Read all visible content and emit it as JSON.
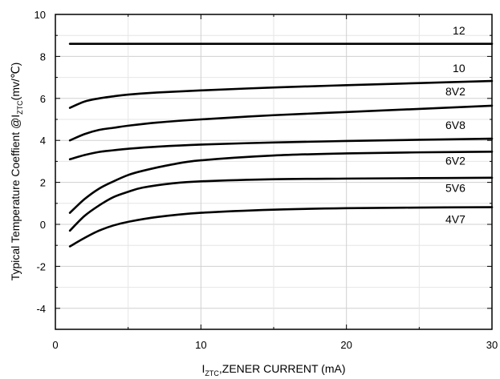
{
  "chart_data": {
    "type": "line",
    "title": "",
    "xlabel": "I₂ₜₑ, ZENER CURRENT (mA)",
    "xlabel_parts": {
      "main": "I",
      "sub": "ZTC",
      "rest": ",ZENER CURRENT (mA)"
    },
    "ylabel_parts": {
      "main": "Typical Temperature Coeffient @I",
      "sub": "ZTC",
      "rest": "(mv/℃)"
    },
    "xlim": [
      0,
      30
    ],
    "ylim": [
      -5,
      10
    ],
    "x_ticks": [
      0,
      10,
      20,
      30
    ],
    "y_ticks": [
      -4,
      -2,
      0,
      2,
      4,
      6,
      8,
      10
    ],
    "grid": true,
    "series": [
      {
        "name": "12",
        "x": [
          1,
          30
        ],
        "y": [
          8.6,
          8.6
        ]
      },
      {
        "name": "10",
        "x": [
          1,
          2,
          3,
          4,
          5,
          7,
          10,
          15,
          20,
          25,
          30
        ],
        "y": [
          5.55,
          5.85,
          6.0,
          6.1,
          6.18,
          6.28,
          6.38,
          6.52,
          6.63,
          6.73,
          6.83
        ]
      },
      {
        "name": "8V2",
        "x": [
          1,
          2,
          3,
          4,
          5,
          7,
          10,
          15,
          20,
          25,
          30
        ],
        "y": [
          4.0,
          4.3,
          4.5,
          4.6,
          4.7,
          4.85,
          5.0,
          5.2,
          5.35,
          5.5,
          5.65
        ]
      },
      {
        "name": "6V8",
        "x": [
          1,
          2,
          3,
          4,
          5,
          7,
          10,
          15,
          20,
          25,
          30
        ],
        "y": [
          3.1,
          3.3,
          3.45,
          3.53,
          3.6,
          3.7,
          3.8,
          3.9,
          3.97,
          4.03,
          4.08
        ]
      },
      {
        "name": "6V2",
        "x": [
          1,
          2,
          3,
          4,
          5,
          6,
          8,
          10,
          15,
          20,
          25,
          30
        ],
        "y": [
          0.55,
          1.2,
          1.7,
          2.05,
          2.35,
          2.55,
          2.85,
          3.05,
          3.28,
          3.38,
          3.43,
          3.46
        ]
      },
      {
        "name": "5V6",
        "x": [
          1,
          2,
          3,
          4,
          5,
          6,
          8,
          10,
          15,
          20,
          25,
          30
        ],
        "y": [
          -0.3,
          0.4,
          0.9,
          1.3,
          1.55,
          1.75,
          1.95,
          2.05,
          2.15,
          2.18,
          2.2,
          2.22
        ]
      },
      {
        "name": "4V7",
        "x": [
          1,
          2,
          3,
          4,
          5,
          7,
          10,
          15,
          20,
          25,
          30
        ],
        "y": [
          -1.05,
          -0.65,
          -0.3,
          -0.05,
          0.12,
          0.35,
          0.55,
          0.7,
          0.77,
          0.8,
          0.82
        ]
      }
    ],
    "label_positions": [
      {
        "name": "12",
        "x": 27.3,
        "y": 9.05
      },
      {
        "name": "10",
        "x": 27.3,
        "y": 7.25
      },
      {
        "name": "8V2",
        "x": 26.8,
        "y": 6.15
      },
      {
        "name": "6V8",
        "x": 26.8,
        "y": 4.55
      },
      {
        "name": "6V2",
        "x": 26.8,
        "y": 2.85
      },
      {
        "name": "5V6",
        "x": 26.8,
        "y": 1.55
      },
      {
        "name": "4V7",
        "x": 26.8,
        "y": 0.05
      }
    ]
  }
}
